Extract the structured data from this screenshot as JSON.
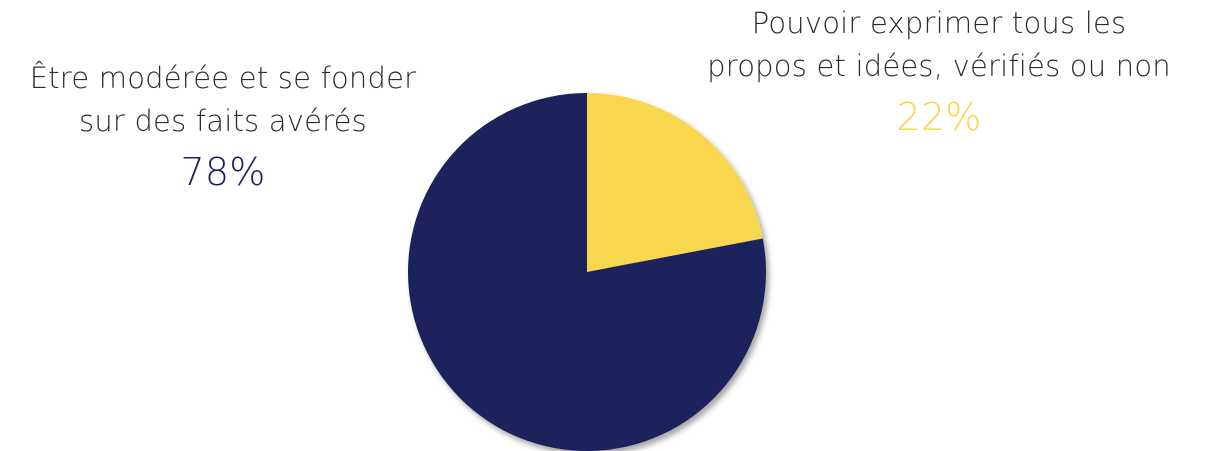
{
  "chart_data": {
    "type": "pie",
    "title": "",
    "legend": "none",
    "slices": [
      {
        "label_lines": [
          "Pouvoir exprimer tous les",
          "propos et idées, vérifiés ou non"
        ],
        "percent_label": "22%",
        "value": 22,
        "color": "#F8D64E"
      },
      {
        "label_lines": [
          "Être modérée et se fonder",
          "sur des faits avérés"
        ],
        "percent_label": "78%",
        "value": 78,
        "color": "#1B205C"
      }
    ]
  }
}
